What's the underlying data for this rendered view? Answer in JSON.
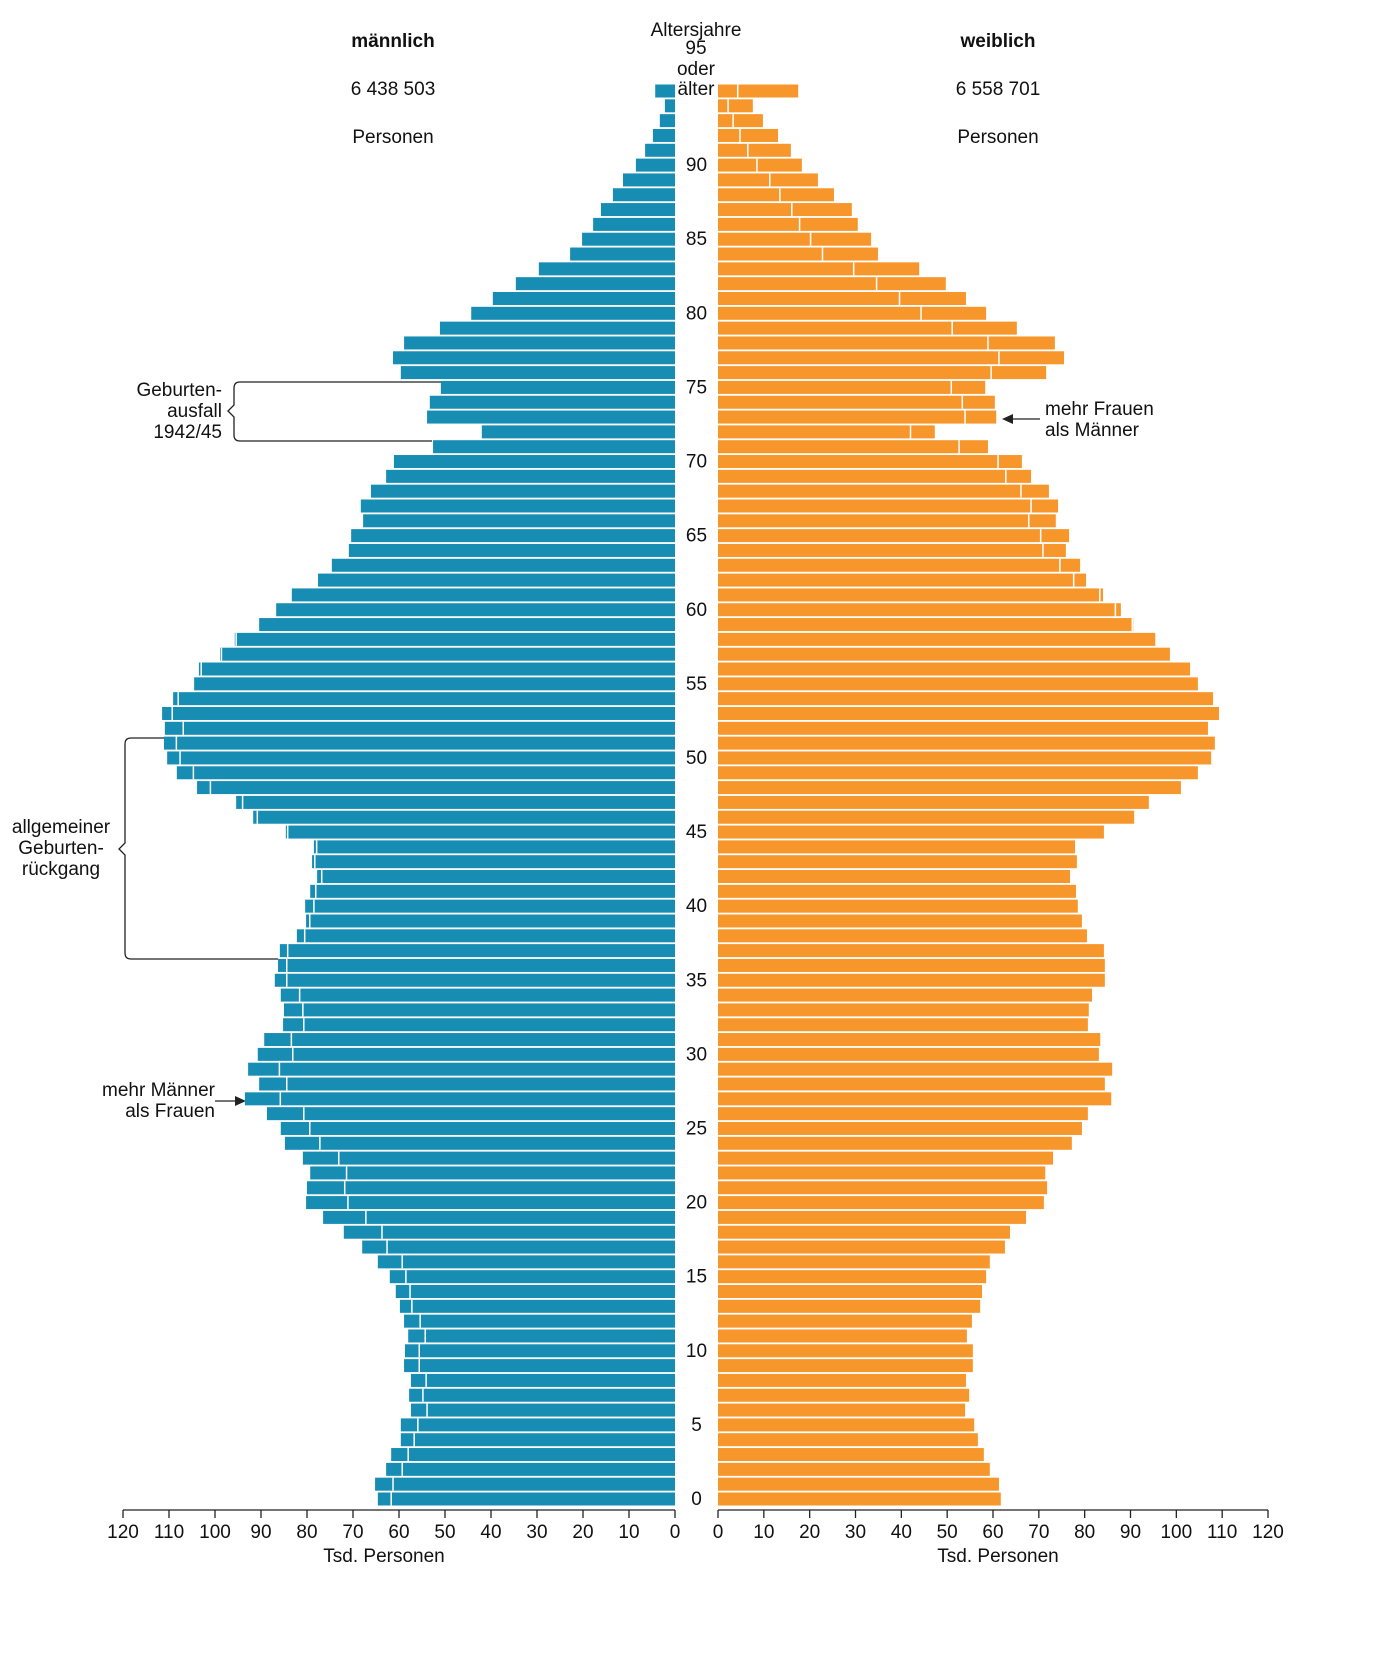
{
  "chart_data": {
    "type": "pyramid",
    "categories": [
      "0",
      null,
      null,
      null,
      null,
      "5",
      null,
      null,
      null,
      null,
      "10",
      null,
      null,
      null,
      null,
      "15",
      null,
      null,
      null,
      null,
      "20",
      null,
      null,
      null,
      null,
      "25",
      null,
      null,
      null,
      null,
      "30",
      null,
      null,
      null,
      null,
      "35",
      null,
      null,
      null,
      null,
      "40",
      null,
      null,
      null,
      null,
      "45",
      null,
      null,
      null,
      null,
      "50",
      null,
      null,
      null,
      null,
      "55",
      null,
      null,
      null,
      null,
      "60",
      null,
      null,
      null,
      null,
      "65",
      null,
      null,
      null,
      null,
      "70",
      null,
      null,
      null,
      null,
      "75",
      null,
      null,
      null,
      null,
      "80",
      null,
      null,
      null,
      null,
      "85",
      null,
      null,
      null,
      null,
      "90",
      null,
      null,
      null,
      null,
      "95 oder älter"
    ],
    "ylabel": "Altersjahre",
    "series": [
      {
        "name": "männlich",
        "total": 6438503,
        "total_label": "6 438 503",
        "unit": "Personen",
        "color": "#178db3",
        "values": [
          64.6,
          65.2,
          62.8,
          61.7,
          59.6,
          59.6,
          57.4,
          57.8,
          57.4,
          58.9,
          58.7,
          58.0,
          58.9,
          59.8,
          60.7,
          62.0,
          64.6,
          68.0,
          72.0,
          76.5,
          80.2,
          80.0,
          79.3,
          80.9,
          84.8,
          85.7,
          88.7,
          93.5,
          90.4,
          92.8,
          90.7,
          89.3,
          85.2,
          85.0,
          85.7,
          87.0,
          86.3,
          85.9,
          82.2,
          80.2,
          80.4,
          79.3,
          77.8,
          78.9,
          78.5,
          84.6,
          91.7,
          95.4,
          103.9,
          108.3,
          110.4,
          111.1,
          110.9,
          111.5,
          109.1,
          104.8,
          103.5,
          98.9,
          95.7,
          90.4,
          86.7,
          83.3,
          77.6,
          74.6,
          70.9,
          70.4,
          67.8,
          68.3,
          66.1,
          62.8,
          61.1,
          52.6,
          42.0,
          53.9,
          53.3,
          50.9,
          59.6,
          61.3,
          58.9,
          51.1,
          44.3,
          39.6,
          34.6,
          29.6,
          22.8,
          20.2,
          17.8,
          16.1,
          13.5,
          11.3,
          8.5,
          6.5,
          4.8,
          3.3,
          2.2,
          4.3
        ]
      },
      {
        "name": "weiblich",
        "total": 6558701,
        "total_label": "6 558 701",
        "unit": "Personen",
        "color": "#f7962b",
        "values": [
          61.7,
          61.3,
          59.3,
          58.0,
          56.7,
          55.9,
          53.9,
          54.8,
          54.1,
          55.6,
          55.6,
          54.3,
          55.4,
          57.2,
          57.6,
          58.5,
          59.3,
          62.6,
          63.7,
          67.2,
          71.1,
          71.8,
          71.4,
          73.1,
          77.2,
          79.4,
          80.7,
          85.8,
          84.4,
          86.0,
          83.1,
          83.4,
          80.7,
          80.9,
          81.6,
          84.4,
          84.4,
          84.2,
          80.5,
          79.4,
          78.5,
          78.1,
          76.8,
          78.3,
          77.9,
          84.2,
          90.8,
          94.0,
          101.0,
          104.7,
          107.6,
          108.4,
          106.9,
          109.3,
          108.0,
          104.7,
          103.0,
          98.6,
          95.4,
          90.6,
          87.9,
          84.0,
          80.3,
          79.0,
          75.9,
          76.6,
          73.7,
          74.2,
          72.2,
          68.3,
          66.3,
          58.9,
          47.3,
          60.7,
          60.4,
          58.3,
          71.6,
          75.5,
          73.5,
          65.2,
          58.5,
          54.1,
          49.7,
          43.9,
          34.9,
          33.4,
          30.5,
          29.2,
          25.3,
          21.8,
          18.3,
          15.9,
          13.1,
          9.8,
          7.6,
          17.5
        ]
      }
    ],
    "xlim": [
      0,
      120
    ],
    "xticks": [
      0,
      10,
      20,
      30,
      40,
      50,
      60,
      70,
      80,
      90,
      100,
      110,
      120
    ],
    "xlabel": "Tsd. Personen",
    "annotations": [
      "Geburten-\nausfall\n1942/45",
      "mehr Frauen\nals Männer",
      "allgemeiner\nGeburten-\nrückgang",
      "mehr Männer\nals Frauen"
    ]
  }
}
